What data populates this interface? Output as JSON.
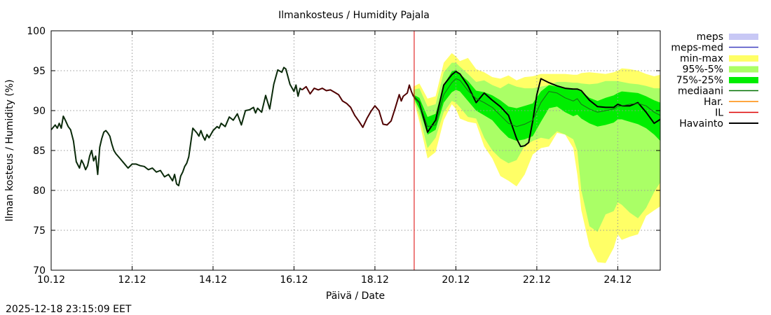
{
  "chart_data": {
    "type": "line",
    "title": "Ilmankosteus / Humidity  Pajala",
    "xlabel": "Päivä / Date",
    "ylabel": "Ilman kosteus / Humidity (%)",
    "xlim": [
      10.0,
      25.05
    ],
    "ylim": [
      70,
      100
    ],
    "grid": true,
    "legend_position": "right",
    "forecast_start_day": 18.97,
    "yticks": [
      70,
      75,
      80,
      85,
      90,
      95,
      100
    ],
    "xticks": [
      {
        "day": 10,
        "label": "10.12"
      },
      {
        "day": 12,
        "label": "12.12"
      },
      {
        "day": 14,
        "label": "14.12"
      },
      {
        "day": 16,
        "label": "16.12"
      },
      {
        "day": 18,
        "label": "18.12"
      },
      {
        "day": 20,
        "label": "20.12"
      },
      {
        "day": 22,
        "label": "22.12"
      },
      {
        "day": 24,
        "label": "24.12"
      }
    ],
    "legend": [
      {
        "label": "meps",
        "kind": "band",
        "color": "#c8c8f5"
      },
      {
        "label": "meps-med",
        "kind": "line",
        "color": "#4040c0"
      },
      {
        "label": "min-max",
        "kind": "band",
        "color": "#ffff66"
      },
      {
        "label": "95%-5%",
        "kind": "band",
        "color": "#aaff66"
      },
      {
        "label": "75%-25%",
        "kind": "band",
        "color": "#00ee00"
      },
      {
        "label": "mediaani",
        "kind": "line",
        "color": "#007000"
      },
      {
        "label": "Har.",
        "kind": "line",
        "color": "#ff8800"
      },
      {
        "label": "IL",
        "kind": "line",
        "color": "#dd0000"
      },
      {
        "label": "Havainto",
        "kind": "line",
        "color": "#000000"
      }
    ],
    "series": [
      {
        "name": "Havainto (history)",
        "color": "#0a2a0a",
        "x": [
          10.0,
          10.1,
          10.15,
          10.2,
          10.25,
          10.3,
          10.35,
          10.42,
          10.48,
          10.55,
          10.62,
          10.7,
          10.75,
          10.8,
          10.85,
          10.9,
          10.95,
          11.0,
          11.05,
          11.1,
          11.15,
          11.2,
          11.25,
          11.3,
          11.35,
          11.4,
          11.45,
          11.5,
          11.55,
          11.6,
          11.65,
          11.7,
          11.8,
          11.9,
          12.0,
          12.1,
          12.2,
          12.3,
          12.4,
          12.5,
          12.6,
          12.7,
          12.8,
          12.9,
          13.0,
          13.05,
          13.1,
          13.15,
          13.2,
          13.25,
          13.3,
          13.35,
          13.4,
          13.5,
          13.6,
          13.65,
          13.7,
          13.75,
          13.8,
          13.85,
          13.9,
          14.0,
          14.1,
          14.15,
          14.2,
          14.3,
          14.4,
          14.5,
          14.6,
          14.7,
          14.8,
          14.9,
          15.0,
          15.05,
          15.1,
          15.2,
          15.3,
          15.4,
          15.5,
          15.6,
          15.7,
          15.75,
          15.8,
          15.9,
          16.0,
          16.05,
          16.1,
          16.15,
          16.2
        ],
        "y": [
          87.6,
          88.2,
          87.8,
          88.4,
          87.8,
          89.3,
          88.8,
          88.0,
          87.6,
          86.2,
          83.6,
          82.8,
          83.8,
          83.3,
          82.6,
          83.1,
          84.3,
          85.0,
          83.7,
          84.3,
          82.0,
          85.4,
          86.5,
          87.3,
          87.5,
          87.2,
          86.8,
          85.8,
          85.0,
          84.6,
          84.3,
          84.0,
          83.4,
          82.8,
          83.3,
          83.3,
          83.1,
          83.0,
          82.6,
          82.8,
          82.3,
          82.5,
          81.7,
          82.0,
          81.2,
          82.0,
          80.8,
          80.6,
          81.8,
          82.3,
          83.0,
          83.4,
          84.2,
          87.8,
          87.2,
          86.8,
          87.5,
          86.8,
          86.3,
          87.0,
          86.6,
          87.5,
          88.0,
          87.8,
          88.4,
          88.0,
          89.2,
          88.8,
          89.6,
          88.2,
          90.0,
          90.1,
          90.4,
          89.7,
          90.3,
          89.8,
          91.9,
          90.2,
          93.3,
          95.1,
          94.8,
          95.4,
          95.2,
          93.3,
          92.4,
          93.2,
          91.8,
          92.8,
          92.6
        ]
      },
      {
        "name": "Havainto (recent)",
        "color": "#500000",
        "x": [
          16.2,
          16.3,
          16.4,
          16.5,
          16.6,
          16.7,
          16.8,
          16.9,
          17.0,
          17.1,
          17.2,
          17.3,
          17.4,
          17.5,
          17.6,
          17.7,
          17.8,
          17.9,
          18.0,
          18.1,
          18.2,
          18.3,
          18.4,
          18.5,
          18.6,
          18.65,
          18.7,
          18.8,
          18.85,
          18.9,
          18.95
        ],
        "y": [
          92.6,
          93.0,
          92.1,
          92.8,
          92.6,
          92.8,
          92.5,
          92.6,
          92.3,
          92.0,
          91.2,
          90.9,
          90.4,
          89.4,
          88.7,
          87.9,
          89.0,
          89.9,
          90.6,
          90.0,
          88.3,
          88.2,
          88.7,
          90.3,
          92.0,
          91.2,
          91.8,
          92.2,
          93.2,
          92.4,
          91.8
        ]
      },
      {
        "name": "Havainto (forecast)",
        "color": "#000000",
        "x": [
          18.95,
          19.1,
          19.3,
          19.5,
          19.7,
          19.9,
          20.0,
          20.1,
          20.3,
          20.5,
          20.7,
          20.9,
          21.1,
          21.3,
          21.5,
          21.6,
          21.7,
          21.8,
          21.9,
          22.0,
          22.1,
          22.3,
          22.5,
          22.7,
          22.9,
          23.0,
          23.1,
          23.3,
          23.5,
          23.7,
          23.9,
          24.0,
          24.1,
          24.3,
          24.5,
          24.7,
          24.9,
          25.05
        ],
        "y": [
          91.8,
          91.0,
          87.3,
          88.8,
          93.2,
          94.5,
          94.9,
          94.6,
          93.1,
          91.0,
          92.2,
          91.3,
          90.5,
          89.4,
          86.5,
          85.5,
          85.6,
          86.0,
          88.7,
          92.0,
          94.0,
          93.5,
          93.1,
          92.8,
          92.7,
          92.7,
          92.5,
          91.3,
          90.5,
          90.4,
          90.4,
          90.8,
          90.6,
          90.6,
          91.0,
          89.8,
          88.4,
          88.9
        ]
      },
      {
        "name": "mediaani",
        "color": "#1a6a1a",
        "x": [
          18.95,
          19.1,
          19.3,
          19.5,
          19.7,
          19.9,
          20.0,
          20.1,
          20.3,
          20.5,
          20.7,
          20.9,
          21.1,
          21.3,
          21.5,
          21.7,
          21.9,
          22.1,
          22.3,
          22.5,
          22.7,
          22.9,
          23.0,
          23.1,
          23.3,
          23.5,
          23.7,
          23.9,
          24.0,
          24.1,
          24.3,
          24.5,
          24.7,
          24.9,
          25.05
        ],
        "y": [
          91.8,
          91.0,
          88.0,
          88.2,
          92.0,
          93.5,
          94.0,
          93.8,
          92.5,
          91.5,
          91.0,
          90.4,
          89.4,
          88.4,
          88.0,
          88.3,
          88.8,
          91.0,
          92.4,
          92.2,
          91.6,
          91.2,
          91.5,
          90.8,
          90.2,
          89.8,
          90.0,
          90.2,
          90.5,
          90.6,
          90.8,
          90.9,
          90.6,
          89.8,
          89.4
        ]
      }
    ],
    "bands": [
      {
        "name": "min-max",
        "color": "#ffff66",
        "x": [
          18.95,
          19.1,
          19.3,
          19.5,
          19.7,
          19.9,
          20.0,
          20.1,
          20.3,
          20.5,
          20.7,
          20.9,
          21.1,
          21.3,
          21.5,
          21.7,
          21.9,
          22.1,
          22.3,
          22.5,
          22.7,
          22.9,
          23.0,
          23.1,
          23.3,
          23.5,
          23.7,
          23.9,
          24.0,
          24.1,
          24.3,
          24.5,
          24.7,
          24.9,
          25.05
        ],
        "upper": [
          93.0,
          93.4,
          91.5,
          91.8,
          96.0,
          97.2,
          96.8,
          96.2,
          96.6,
          95.2,
          94.8,
          94.2,
          94.0,
          94.4,
          93.8,
          94.2,
          94.3,
          94.6,
          94.6,
          94.6,
          94.6,
          94.5,
          94.5,
          94.7,
          94.8,
          94.7,
          94.6,
          94.8,
          95.0,
          95.3,
          95.2,
          95.0,
          94.6,
          94.3,
          94.5
        ],
        "lower": [
          91.5,
          88.6,
          84.0,
          84.8,
          88.8,
          90.8,
          90.2,
          89.0,
          88.6,
          88.4,
          85.5,
          84.0,
          81.8,
          81.2,
          80.5,
          82.0,
          84.5,
          85.3,
          85.5,
          87.2,
          87.0,
          85.3,
          82.0,
          77.5,
          73.0,
          71.0,
          70.9,
          72.8,
          74.5,
          73.8,
          74.2,
          74.5,
          76.8,
          77.5,
          78.0
        ]
      },
      {
        "name": "95%-5%",
        "color": "#aaff66",
        "x": [
          18.95,
          19.1,
          19.3,
          19.5,
          19.7,
          19.9,
          20.0,
          20.1,
          20.3,
          20.5,
          20.7,
          20.9,
          21.1,
          21.3,
          21.5,
          21.7,
          21.9,
          22.1,
          22.3,
          22.5,
          22.7,
          22.9,
          23.0,
          23.1,
          23.3,
          23.5,
          23.7,
          23.9,
          24.0,
          24.1,
          24.3,
          24.5,
          24.7,
          24.9,
          25.05
        ],
        "upper": [
          92.6,
          92.8,
          90.5,
          90.8,
          94.8,
          96.0,
          96.0,
          95.5,
          94.6,
          93.6,
          93.8,
          93.2,
          92.8,
          93.4,
          93.0,
          92.8,
          92.8,
          93.0,
          93.2,
          93.6,
          93.6,
          93.5,
          93.5,
          93.4,
          93.3,
          93.4,
          93.7,
          93.7,
          93.7,
          93.6,
          93.4,
          93.3,
          93.1,
          92.8,
          92.8
        ],
        "lower": [
          91.6,
          89.4,
          85.3,
          86.6,
          89.8,
          91.2,
          91.0,
          90.4,
          89.2,
          89.0,
          86.6,
          85.0,
          84.0,
          83.4,
          83.8,
          85.6,
          86.2,
          86.6,
          86.4,
          87.4,
          87.0,
          86.4,
          85.0,
          80.0,
          75.5,
          74.8,
          77.0,
          77.4,
          78.5,
          78.2,
          77.2,
          76.5,
          77.8,
          79.8,
          81.0
        ]
      },
      {
        "name": "75%-25%",
        "color": "#00ee00",
        "x": [
          18.95,
          19.1,
          19.3,
          19.5,
          19.7,
          19.9,
          20.0,
          20.1,
          20.3,
          20.5,
          20.7,
          20.9,
          21.1,
          21.3,
          21.5,
          21.7,
          21.9,
          22.1,
          22.3,
          22.5,
          22.7,
          22.9,
          23.0,
          23.1,
          23.3,
          23.5,
          23.7,
          23.9,
          24.0,
          24.1,
          24.3,
          24.5,
          24.7,
          24.9,
          25.05
        ],
        "upper": [
          92.0,
          91.6,
          89.2,
          89.6,
          93.2,
          94.9,
          95.1,
          94.6,
          93.7,
          92.5,
          92.3,
          91.9,
          91.3,
          90.5,
          90.3,
          90.6,
          90.9,
          92.4,
          93.2,
          93.0,
          92.8,
          92.6,
          92.6,
          92.4,
          91.6,
          91.2,
          91.6,
          91.9,
          92.2,
          92.4,
          92.3,
          92.2,
          91.8,
          91.3,
          91.0
        ],
        "lower": [
          91.7,
          90.2,
          87.0,
          87.6,
          91.0,
          92.3,
          92.6,
          92.4,
          91.2,
          90.0,
          89.4,
          88.8,
          87.6,
          86.6,
          86.2,
          86.4,
          86.8,
          88.6,
          90.3,
          90.5,
          89.8,
          89.3,
          89.5,
          89.0,
          88.4,
          88.0,
          88.2,
          88.5,
          88.9,
          88.9,
          88.6,
          88.3,
          87.8,
          87.0,
          86.2
        ]
      }
    ],
    "timestamp": "2025-12-18 23:15:09 EET"
  }
}
